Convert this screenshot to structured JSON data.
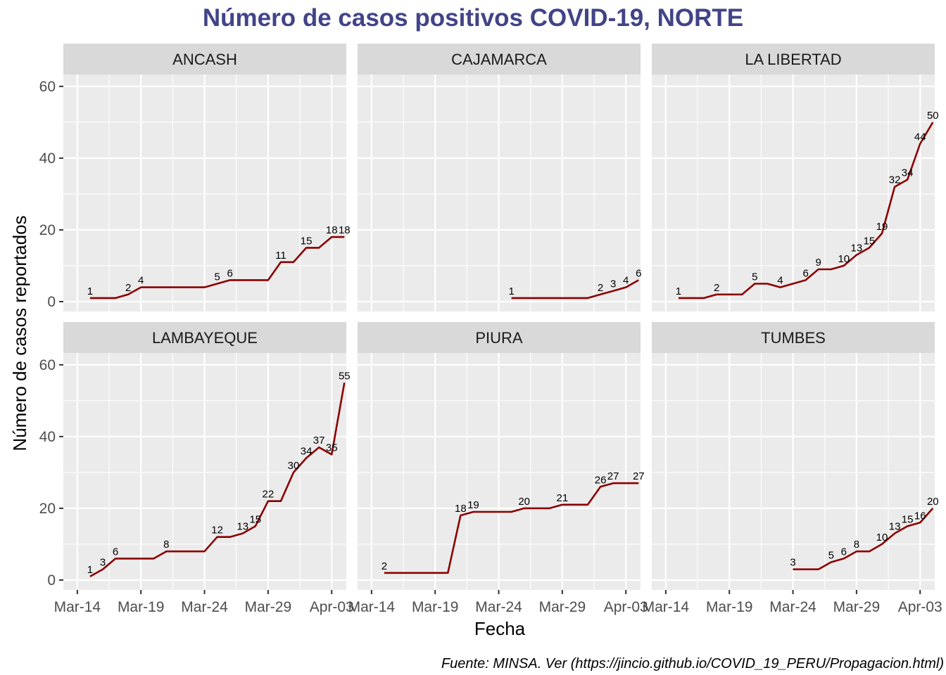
{
  "chart_data": {
    "type": "line",
    "title": "Número de casos positivos COVID-19, NORTE",
    "xlabel": "Fecha",
    "ylabel": "Número de casos reportados",
    "caption": "Fuente: MINSA. Ver (https://jincio.github.io/COVID_19_PERU/Propagacion.html)",
    "x_day_ticks": [
      "Mar-14",
      "Mar-19",
      "Mar-24",
      "Mar-29",
      "Apr-03"
    ],
    "x_range": [
      "2020-03-14",
      "2020-04-05"
    ],
    "y_ticks": [
      "0",
      "20",
      "40",
      "60"
    ],
    "ylim": [
      0,
      60
    ],
    "line_color": "#8b0000",
    "grid": true,
    "facets": [
      {
        "name": "ANCASH",
        "points": [
          {
            "x": "2020-03-15",
            "y": 1,
            "label": "1"
          },
          {
            "x": "2020-03-16",
            "y": 1
          },
          {
            "x": "2020-03-17",
            "y": 1
          },
          {
            "x": "2020-03-18",
            "y": 2,
            "label": "2"
          },
          {
            "x": "2020-03-19",
            "y": 4,
            "label": "4"
          },
          {
            "x": "2020-03-20",
            "y": 4
          },
          {
            "x": "2020-03-21",
            "y": 4
          },
          {
            "x": "2020-03-22",
            "y": 4
          },
          {
            "x": "2020-03-23",
            "y": 4
          },
          {
            "x": "2020-03-24",
            "y": 4
          },
          {
            "x": "2020-03-25",
            "y": 5,
            "label": "5"
          },
          {
            "x": "2020-03-26",
            "y": 6,
            "label": "6"
          },
          {
            "x": "2020-03-27",
            "y": 6
          },
          {
            "x": "2020-03-28",
            "y": 6
          },
          {
            "x": "2020-03-29",
            "y": 6
          },
          {
            "x": "2020-03-30",
            "y": 11,
            "label": "11"
          },
          {
            "x": "2020-03-31",
            "y": 11
          },
          {
            "x": "2020-04-01",
            "y": 15,
            "label": "15"
          },
          {
            "x": "2020-04-02",
            "y": 15
          },
          {
            "x": "2020-04-03",
            "y": 18,
            "label": "18"
          },
          {
            "x": "2020-04-04",
            "y": 18,
            "label": "18"
          }
        ]
      },
      {
        "name": "CAJAMARCA",
        "points": [
          {
            "x": "2020-03-25",
            "y": 1,
            "label": "1"
          },
          {
            "x": "2020-03-26",
            "y": 1
          },
          {
            "x": "2020-03-27",
            "y": 1
          },
          {
            "x": "2020-03-28",
            "y": 1
          },
          {
            "x": "2020-03-29",
            "y": 1
          },
          {
            "x": "2020-03-30",
            "y": 1
          },
          {
            "x": "2020-03-31",
            "y": 1
          },
          {
            "x": "2020-04-01",
            "y": 2,
            "label": "2"
          },
          {
            "x": "2020-04-02",
            "y": 3,
            "label": "3"
          },
          {
            "x": "2020-04-03",
            "y": 4,
            "label": "4"
          },
          {
            "x": "2020-04-04",
            "y": 6,
            "label": "6"
          }
        ]
      },
      {
        "name": "LA LIBERTAD",
        "points": [
          {
            "x": "2020-03-15",
            "y": 1,
            "label": "1"
          },
          {
            "x": "2020-03-16",
            "y": 1
          },
          {
            "x": "2020-03-17",
            "y": 1
          },
          {
            "x": "2020-03-18",
            "y": 2,
            "label": "2"
          },
          {
            "x": "2020-03-19",
            "y": 2
          },
          {
            "x": "2020-03-20",
            "y": 2
          },
          {
            "x": "2020-03-21",
            "y": 5,
            "label": "5"
          },
          {
            "x": "2020-03-22",
            "y": 5
          },
          {
            "x": "2020-03-23",
            "y": 4,
            "label": "4"
          },
          {
            "x": "2020-03-24",
            "y": 5
          },
          {
            "x": "2020-03-25",
            "y": 6,
            "label": "6"
          },
          {
            "x": "2020-03-26",
            "y": 9,
            "label": "9"
          },
          {
            "x": "2020-03-27",
            "y": 9
          },
          {
            "x": "2020-03-28",
            "y": 10,
            "label": "10"
          },
          {
            "x": "2020-03-29",
            "y": 13,
            "label": "13"
          },
          {
            "x": "2020-03-30",
            "y": 15,
            "label": "15"
          },
          {
            "x": "2020-03-31",
            "y": 19,
            "label": "19"
          },
          {
            "x": "2020-04-01",
            "y": 32,
            "label": "32"
          },
          {
            "x": "2020-04-02",
            "y": 34,
            "label": "34"
          },
          {
            "x": "2020-04-03",
            "y": 44,
            "label": "44"
          },
          {
            "x": "2020-04-04",
            "y": 50,
            "label": "50"
          }
        ]
      },
      {
        "name": "LAMBAYEQUE",
        "points": [
          {
            "x": "2020-03-15",
            "y": 1,
            "label": "1"
          },
          {
            "x": "2020-03-16",
            "y": 3,
            "label": "3"
          },
          {
            "x": "2020-03-17",
            "y": 6,
            "label": "6"
          },
          {
            "x": "2020-03-18",
            "y": 6
          },
          {
            "x": "2020-03-19",
            "y": 6
          },
          {
            "x": "2020-03-20",
            "y": 6
          },
          {
            "x": "2020-03-21",
            "y": 8,
            "label": "8"
          },
          {
            "x": "2020-03-22",
            "y": 8
          },
          {
            "x": "2020-03-23",
            "y": 8
          },
          {
            "x": "2020-03-24",
            "y": 8
          },
          {
            "x": "2020-03-25",
            "y": 12,
            "label": "12"
          },
          {
            "x": "2020-03-26",
            "y": 12
          },
          {
            "x": "2020-03-27",
            "y": 13,
            "label": "13"
          },
          {
            "x": "2020-03-28",
            "y": 15,
            "label": "15"
          },
          {
            "x": "2020-03-29",
            "y": 22,
            "label": "22"
          },
          {
            "x": "2020-03-30",
            "y": 22
          },
          {
            "x": "2020-03-31",
            "y": 30,
            "label": "30"
          },
          {
            "x": "2020-04-01",
            "y": 34,
            "label": "34"
          },
          {
            "x": "2020-04-02",
            "y": 37,
            "label": "37"
          },
          {
            "x": "2020-04-03",
            "y": 35,
            "label": "35"
          },
          {
            "x": "2020-04-04",
            "y": 55,
            "label": "55"
          }
        ]
      },
      {
        "name": "PIURA",
        "points": [
          {
            "x": "2020-03-15",
            "y": 2,
            "label": "2"
          },
          {
            "x": "2020-03-16",
            "y": 2
          },
          {
            "x": "2020-03-17",
            "y": 2
          },
          {
            "x": "2020-03-18",
            "y": 2
          },
          {
            "x": "2020-03-19",
            "y": 2
          },
          {
            "x": "2020-03-20",
            "y": 2
          },
          {
            "x": "2020-03-21",
            "y": 18,
            "label": "18"
          },
          {
            "x": "2020-03-22",
            "y": 19,
            "label": "19"
          },
          {
            "x": "2020-03-23",
            "y": 19
          },
          {
            "x": "2020-03-24",
            "y": 19
          },
          {
            "x": "2020-03-25",
            "y": 19
          },
          {
            "x": "2020-03-26",
            "y": 20,
            "label": "20"
          },
          {
            "x": "2020-03-27",
            "y": 20
          },
          {
            "x": "2020-03-28",
            "y": 20
          },
          {
            "x": "2020-03-29",
            "y": 21,
            "label": "21"
          },
          {
            "x": "2020-03-30",
            "y": 21
          },
          {
            "x": "2020-03-31",
            "y": 21
          },
          {
            "x": "2020-04-01",
            "y": 26,
            "label": "26"
          },
          {
            "x": "2020-04-02",
            "y": 27,
            "label": "27"
          },
          {
            "x": "2020-04-03",
            "y": 27
          },
          {
            "x": "2020-04-04",
            "y": 27,
            "label": "27"
          }
        ]
      },
      {
        "name": "TUMBES",
        "points": [
          {
            "x": "2020-03-24",
            "y": 3,
            "label": "3"
          },
          {
            "x": "2020-03-25",
            "y": 3
          },
          {
            "x": "2020-03-26",
            "y": 3
          },
          {
            "x": "2020-03-27",
            "y": 5,
            "label": "5"
          },
          {
            "x": "2020-03-28",
            "y": 6,
            "label": "6"
          },
          {
            "x": "2020-03-29",
            "y": 8,
            "label": "8"
          },
          {
            "x": "2020-03-30",
            "y": 8
          },
          {
            "x": "2020-03-31",
            "y": 10,
            "label": "10"
          },
          {
            "x": "2020-04-01",
            "y": 13,
            "label": "13"
          },
          {
            "x": "2020-04-02",
            "y": 15,
            "label": "15"
          },
          {
            "x": "2020-04-03",
            "y": 16,
            "label": "16"
          },
          {
            "x": "2020-04-04",
            "y": 20,
            "label": "20"
          }
        ]
      }
    ]
  }
}
